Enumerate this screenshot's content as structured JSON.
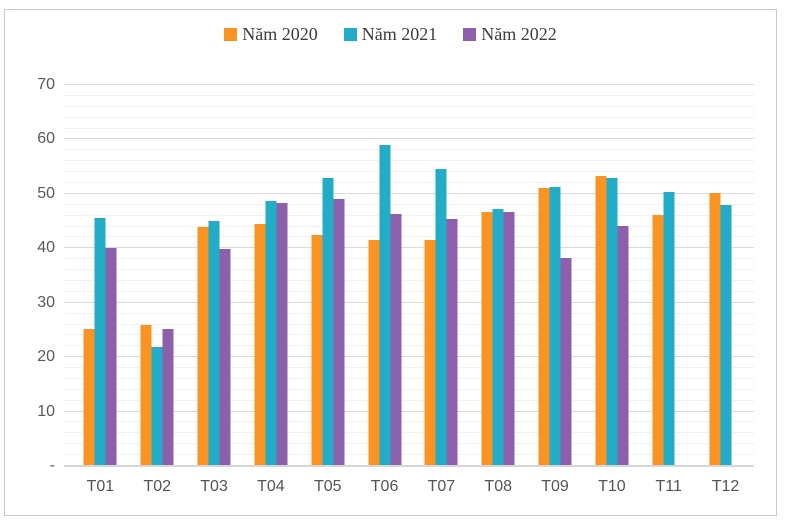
{
  "chart_data": {
    "type": "bar",
    "title": "",
    "xlabel": "",
    "ylabel": "",
    "categories": [
      "T01",
      "T02",
      "T03",
      "T04",
      "T05",
      "T06",
      "T07",
      "T08",
      "T09",
      "T10",
      "T11",
      "T12"
    ],
    "series": [
      {
        "name": "Năm 2020",
        "color": "#FB9322",
        "values": [
          25.2,
          26.0,
          43.9,
          44.4,
          42.5,
          41.5,
          41.6,
          46.7,
          51.1,
          53.3,
          46.2,
          50.2
        ]
      },
      {
        "name": "Năm 2021",
        "color": "#22ACC7",
        "values": [
          45.6,
          21.9,
          45.0,
          48.6,
          53.0,
          59.0,
          54.5,
          47.3,
          51.3,
          52.9,
          50.4,
          47.9
        ]
      },
      {
        "name": "Năm 2022",
        "color": "#8C60AA",
        "values": [
          40.0,
          25.2,
          39.8,
          48.4,
          49.0,
          46.3,
          45.3,
          46.6,
          38.2,
          44.1,
          null,
          null
        ]
      }
    ],
    "ylim": [
      0,
      70
    ],
    "y_major_ticks": [
      70,
      60,
      50,
      40,
      30,
      20,
      10
    ],
    "zero_tick_label": "-",
    "y_minor_step": 2,
    "grid": "on",
    "legend_position": "top"
  },
  "colors": {
    "frame_border": "#c6cbd0",
    "gridline_major": "#dadada",
    "gridline_minor": "#f1f1f1",
    "axis_text": "#595959",
    "legend_text": "#3d3d3d",
    "background": "#ffffff"
  }
}
